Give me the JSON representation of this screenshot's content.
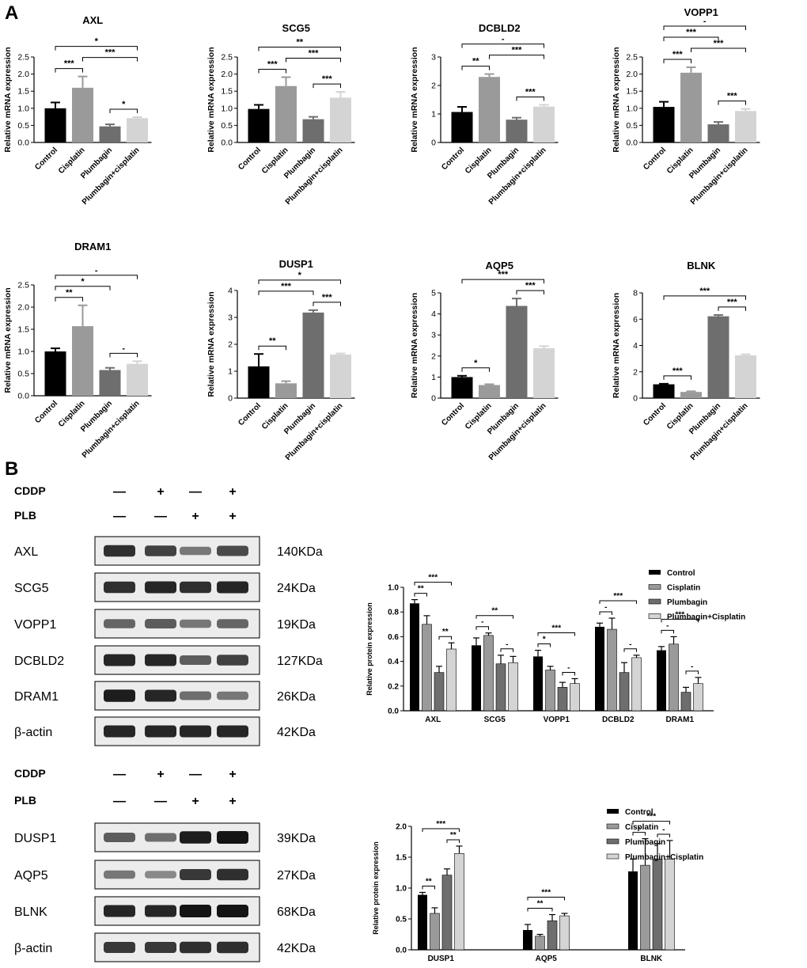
{
  "panels": {
    "a": "A",
    "b": "B"
  },
  "mrna": {
    "ylabel": "Relative mRNA expression",
    "categories": [
      "Control",
      "Cisplatin",
      "Plumbagin",
      "Plumbagin+cisplatin"
    ],
    "colors": [
      "#000000",
      "#9a9a9a",
      "#6e6e6e",
      "#d4d4d4"
    ]
  },
  "chart_data": [
    {
      "type": "bar",
      "title": "AXL",
      "ylabel": "Relative mRNA expression",
      "ylim": [
        0,
        2.5
      ],
      "yticks": [
        0.0,
        0.5,
        1.0,
        1.5,
        2.0,
        2.5
      ],
      "categories": [
        "Control",
        "Cisplatin",
        "Plumbagin",
        "Plumbagin+cisplatin"
      ],
      "values": [
        1.0,
        1.6,
        0.47,
        0.71
      ],
      "errors": [
        0.17,
        0.33,
        0.06,
        0.03
      ],
      "annotations": [
        {
          "from": 0,
          "to": 1,
          "label": "***"
        },
        {
          "from": 1,
          "to": 3,
          "label": "***"
        },
        {
          "from": 2,
          "to": 3,
          "label": "*"
        },
        {
          "from": 0,
          "to": 3,
          "label": "*"
        }
      ]
    },
    {
      "type": "bar",
      "title": "SCG5",
      "ylabel": "Relative mRNA expression",
      "ylim": [
        0,
        2.5
      ],
      "yticks": [
        0.0,
        0.5,
        1.0,
        1.5,
        2.0,
        2.5
      ],
      "categories": [
        "Control",
        "Cisplatin",
        "Plumbagin",
        "Plumbagin+cisplatin"
      ],
      "values": [
        0.98,
        1.65,
        0.68,
        1.31
      ],
      "errors": [
        0.12,
        0.26,
        0.07,
        0.17
      ],
      "annotations": [
        {
          "from": 0,
          "to": 1,
          "label": "***"
        },
        {
          "from": 1,
          "to": 3,
          "label": "***"
        },
        {
          "from": 2,
          "to": 3,
          "label": "***"
        },
        {
          "from": 0,
          "to": 3,
          "label": "**"
        }
      ]
    },
    {
      "type": "bar",
      "title": "DCBLD2",
      "ylabel": "Relative mRNA expression",
      "ylim": [
        0,
        3
      ],
      "yticks": [
        0,
        1,
        2,
        3
      ],
      "categories": [
        "Control",
        "Cisplatin",
        "Plumbagin",
        "Plumbagin+cisplatin"
      ],
      "values": [
        1.07,
        2.3,
        0.8,
        1.26
      ],
      "errors": [
        0.18,
        0.1,
        0.07,
        0.06
      ],
      "annotations": [
        {
          "from": 0,
          "to": 1,
          "label": "**"
        },
        {
          "from": 1,
          "to": 3,
          "label": "***"
        },
        {
          "from": 2,
          "to": 3,
          "label": "***"
        },
        {
          "from": 0,
          "to": 3,
          "label": "-"
        }
      ]
    },
    {
      "type": "bar",
      "title": "VOPP1",
      "ylabel": "Relative mRNA expression",
      "ylim": [
        0,
        2.5
      ],
      "yticks": [
        0.0,
        0.5,
        1.0,
        1.5,
        2.0,
        2.5
      ],
      "categories": [
        "Control",
        "Cisplatin",
        "Plumbagin",
        "Plumbagin+cisplatin"
      ],
      "values": [
        1.04,
        2.04,
        0.53,
        0.92
      ],
      "errors": [
        0.15,
        0.16,
        0.07,
        0.06
      ],
      "annotations": [
        {
          "from": 0,
          "to": 1,
          "label": "***"
        },
        {
          "from": 1,
          "to": 3,
          "label": "***"
        },
        {
          "from": 2,
          "to": 3,
          "label": "***"
        },
        {
          "from": 0,
          "to": 2,
          "label": "***"
        },
        {
          "from": 0,
          "to": 3,
          "label": "-"
        }
      ]
    },
    {
      "type": "bar",
      "title": "DRAM1",
      "ylabel": "Relative mRNA expression",
      "ylim": [
        0,
        2.5
      ],
      "yticks": [
        0.0,
        0.5,
        1.0,
        1.5,
        2.0,
        2.5
      ],
      "categories": [
        "Control",
        "Cisplatin",
        "Plumbagin",
        "Plumbagin+cisplatin"
      ],
      "values": [
        1.0,
        1.57,
        0.58,
        0.72
      ],
      "errors": [
        0.07,
        0.47,
        0.05,
        0.06
      ],
      "annotations": [
        {
          "from": 0,
          "to": 1,
          "label": "**"
        },
        {
          "from": 0,
          "to": 2,
          "label": "*"
        },
        {
          "from": 2,
          "to": 3,
          "label": "-"
        },
        {
          "from": 0,
          "to": 3,
          "label": "-"
        }
      ]
    },
    {
      "type": "bar",
      "title": "DUSP1",
      "ylabel": "Relative mRNA expression",
      "ylim": [
        0,
        4
      ],
      "yticks": [
        0,
        1,
        2,
        3,
        4
      ],
      "categories": [
        "Control",
        "Cisplatin",
        "Plumbagin",
        "Plumbagin+cisplatin"
      ],
      "values": [
        1.18,
        0.55,
        3.18,
        1.62
      ],
      "errors": [
        0.46,
        0.08,
        0.09,
        0.04
      ],
      "annotations": [
        {
          "from": 0,
          "to": 1,
          "label": "**"
        },
        {
          "from": 0,
          "to": 2,
          "label": "***"
        },
        {
          "from": 2,
          "to": 3,
          "label": "***"
        },
        {
          "from": 0,
          "to": 3,
          "label": "*"
        }
      ]
    },
    {
      "type": "bar",
      "title": "AQP5",
      "ylabel": "Relative mRNA expression",
      "ylim": [
        0,
        5
      ],
      "yticks": [
        0,
        1,
        2,
        3,
        4,
        5
      ],
      "categories": [
        "Control",
        "Cisplatin",
        "Plumbagin",
        "Plumbagin+cisplatin"
      ],
      "values": [
        1.0,
        0.62,
        4.38,
        2.37
      ],
      "errors": [
        0.06,
        0.04,
        0.35,
        0.1
      ],
      "annotations": [
        {
          "from": 0,
          "to": 1,
          "label": "*"
        },
        {
          "from": 2,
          "to": 3,
          "label": "***"
        },
        {
          "from": 0,
          "to": 3,
          "label": "***"
        }
      ]
    },
    {
      "type": "bar",
      "title": "BLNK",
      "ylabel": "Relative mRNA expression",
      "ylim": [
        0,
        8
      ],
      "yticks": [
        0,
        2,
        4,
        6,
        8
      ],
      "categories": [
        "Control",
        "Cisplatin",
        "Plumbagin",
        "Plumbagin+cisplatin"
      ],
      "values": [
        1.05,
        0.47,
        6.22,
        3.25
      ],
      "errors": [
        0.04,
        0.05,
        0.1,
        0.08
      ],
      "annotations": [
        {
          "from": 0,
          "to": 1,
          "label": "***"
        },
        {
          "from": 2,
          "to": 3,
          "label": "***"
        },
        {
          "from": 0,
          "to": 3,
          "label": "***"
        }
      ]
    },
    {
      "type": "bar",
      "ylabel": "Relative protein expression",
      "ylim": [
        0,
        1.0
      ],
      "yticks": [
        0.0,
        0.2,
        0.4,
        0.6,
        0.8,
        1.0
      ],
      "categories": [
        "AXL",
        "SCG5",
        "VOPP1",
        "DCBLD2",
        "DRAM1"
      ],
      "legend": [
        "Control",
        "Cisplatin",
        "Plumbagin",
        "Plumbagin+Cisplatin"
      ],
      "series": [
        {
          "name": "Control",
          "values": [
            0.87,
            0.53,
            0.44,
            0.68,
            0.49
          ],
          "errors": [
            0.03,
            0.06,
            0.05,
            0.03,
            0.03
          ]
        },
        {
          "name": "Cisplatin",
          "values": [
            0.7,
            0.61,
            0.33,
            0.66,
            0.54
          ],
          "errors": [
            0.07,
            0.02,
            0.03,
            0.09,
            0.06
          ]
        },
        {
          "name": "Plumbagin",
          "values": [
            0.31,
            0.38,
            0.19,
            0.31,
            0.15
          ],
          "errors": [
            0.05,
            0.07,
            0.04,
            0.08,
            0.04
          ]
        },
        {
          "name": "Plumbagin+Cisplatin",
          "values": [
            0.5,
            0.39,
            0.22,
            0.43,
            0.22
          ],
          "errors": [
            0.05,
            0.05,
            0.04,
            0.02,
            0.05
          ]
        }
      ],
      "annotations": [
        {
          "group": 0,
          "from": 0,
          "to": 1,
          "label": "**"
        },
        {
          "group": 0,
          "from": 2,
          "to": 3,
          "label": "**"
        },
        {
          "group": 0,
          "from": 0,
          "to": 3,
          "label": "***"
        },
        {
          "group": 1,
          "from": 0,
          "to": 1,
          "label": "-"
        },
        {
          "group": 1,
          "from": 2,
          "to": 3,
          "label": "-"
        },
        {
          "group": 1,
          "from": 0,
          "to": 3,
          "label": "**"
        },
        {
          "group": 2,
          "from": 0,
          "to": 1,
          "label": "*"
        },
        {
          "group": 2,
          "from": 2,
          "to": 3,
          "label": "-"
        },
        {
          "group": 2,
          "from": 0,
          "to": 3,
          "label": "***"
        },
        {
          "group": 3,
          "from": 0,
          "to": 1,
          "label": "-"
        },
        {
          "group": 3,
          "from": 2,
          "to": 3,
          "label": "-"
        },
        {
          "group": 3,
          "from": 0,
          "to": 3,
          "label": "***"
        },
        {
          "group": 4,
          "from": 0,
          "to": 1,
          "label": "-"
        },
        {
          "group": 4,
          "from": 2,
          "to": 3,
          "label": "-"
        },
        {
          "group": 4,
          "from": 0,
          "to": 3,
          "label": "***"
        }
      ]
    },
    {
      "type": "bar",
      "ylabel": "Relative protein expression",
      "ylim": [
        0,
        2.0
      ],
      "yticks": [
        0.0,
        0.5,
        1.0,
        1.5,
        2.0
      ],
      "categories": [
        "DUSP1",
        "AQP5",
        "BLNK"
      ],
      "legend": [
        "Control",
        "Cisplatin",
        "Plumbagin",
        "Plumbagin+Cisplatin"
      ],
      "series": [
        {
          "name": "Control",
          "values": [
            0.89,
            0.32,
            1.27
          ],
          "errors": [
            0.04,
            0.09,
            0.2
          ]
        },
        {
          "name": "Cisplatin",
          "values": [
            0.59,
            0.22,
            1.37
          ],
          "errors": [
            0.09,
            0.03,
            0.43
          ]
        },
        {
          "name": "Plumbagin",
          "values": [
            1.21,
            0.47,
            1.47
          ],
          "errors": [
            0.1,
            0.1,
            0.25
          ]
        },
        {
          "name": "Plumbagin+Cisplatin",
          "values": [
            1.56,
            0.55,
            1.47
          ],
          "errors": [
            0.12,
            0.04,
            0.3
          ]
        }
      ],
      "annotations": [
        {
          "group": 0,
          "from": 0,
          "to": 1,
          "label": "**"
        },
        {
          "group": 0,
          "from": 2,
          "to": 3,
          "label": "**"
        },
        {
          "group": 0,
          "from": 0,
          "to": 3,
          "label": "***"
        },
        {
          "group": 1,
          "from": 0,
          "to": 2,
          "label": "**"
        },
        {
          "group": 1,
          "from": 0,
          "to": 3,
          "label": "***"
        },
        {
          "group": 2,
          "from": 0,
          "to": 1,
          "label": "-"
        },
        {
          "group": 2,
          "from": 2,
          "to": 3,
          "label": "-"
        },
        {
          "group": 2,
          "from": 0,
          "to": 3,
          "label": "***"
        }
      ]
    }
  ],
  "protein_colors": {
    "fill": [
      "#000000",
      "#9a9a9a",
      "#6e6e6e",
      "#d4d4d4"
    ]
  },
  "blots": [
    {
      "treatments": [
        {
          "name": "CDDP",
          "signs": [
            "—",
            "+",
            "—",
            "+"
          ]
        },
        {
          "name": "PLB",
          "signs": [
            "—",
            "—",
            "+",
            "+"
          ]
        }
      ],
      "bands": [
        {
          "label": "AXL",
          "size": "140KDa",
          "intensity": [
            0.85,
            0.75,
            0.45,
            0.7
          ]
        },
        {
          "label": "SCG5",
          "size": "24KDa",
          "intensity": [
            0.85,
            0.9,
            0.85,
            0.9
          ]
        },
        {
          "label": "VOPP1",
          "size": "19KDa",
          "intensity": [
            0.55,
            0.6,
            0.45,
            0.55
          ]
        },
        {
          "label": "DCBLD2",
          "size": "127KDa",
          "intensity": [
            0.9,
            0.9,
            0.6,
            0.75
          ]
        },
        {
          "label": "DRAM1",
          "size": "26KDa",
          "intensity": [
            0.95,
            0.9,
            0.5,
            0.45
          ]
        },
        {
          "label": "β-actin",
          "size": "42KDa",
          "intensity": [
            0.9,
            0.9,
            0.9,
            0.9
          ]
        }
      ]
    },
    {
      "treatments": [
        {
          "name": "CDDP",
          "signs": [
            "—",
            "+",
            "—",
            "+"
          ]
        },
        {
          "name": "PLB",
          "signs": [
            "—",
            "—",
            "+",
            "+"
          ]
        }
      ],
      "bands": [
        {
          "label": "DUSP1",
          "size": "39KDa",
          "intensity": [
            0.6,
            0.5,
            0.95,
            1.0
          ]
        },
        {
          "label": "AQP5",
          "size": "27KDa",
          "intensity": [
            0.45,
            0.35,
            0.8,
            0.85
          ]
        },
        {
          "label": "BLNK",
          "size": "68KDa",
          "intensity": [
            0.9,
            0.9,
            1.0,
            1.0
          ]
        },
        {
          "label": "β-actin",
          "size": "42KDa",
          "intensity": [
            0.8,
            0.8,
            0.85,
            0.85
          ]
        }
      ]
    }
  ]
}
